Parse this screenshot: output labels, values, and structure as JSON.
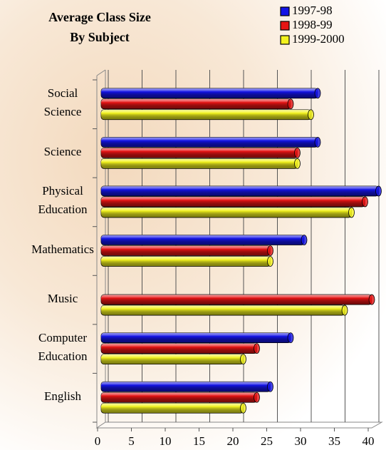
{
  "chart_data": {
    "type": "barh",
    "title": "Average Class Size By Subject",
    "categories": [
      "Social Science",
      "Science",
      "Physical Education",
      "Mathematics",
      "Music",
      "Computer Education",
      "English"
    ],
    "series": [
      {
        "name": "1997-98",
        "color": "#1414e6",
        "values": [
          32,
          32,
          41,
          30,
          null,
          28,
          25
        ]
      },
      {
        "name": "1998-99",
        "color": "#e61414",
        "values": [
          28,
          29,
          39,
          25,
          40,
          23,
          23
        ]
      },
      {
        "name": "1999-2000",
        "color": "#f2f21e",
        "values": [
          31,
          29,
          37,
          25,
          36,
          21,
          21
        ]
      }
    ],
    "xlim": [
      0,
      40
    ],
    "xticks": [
      0,
      5,
      10,
      15,
      20,
      25,
      30,
      35,
      40
    ],
    "grid": true
  }
}
